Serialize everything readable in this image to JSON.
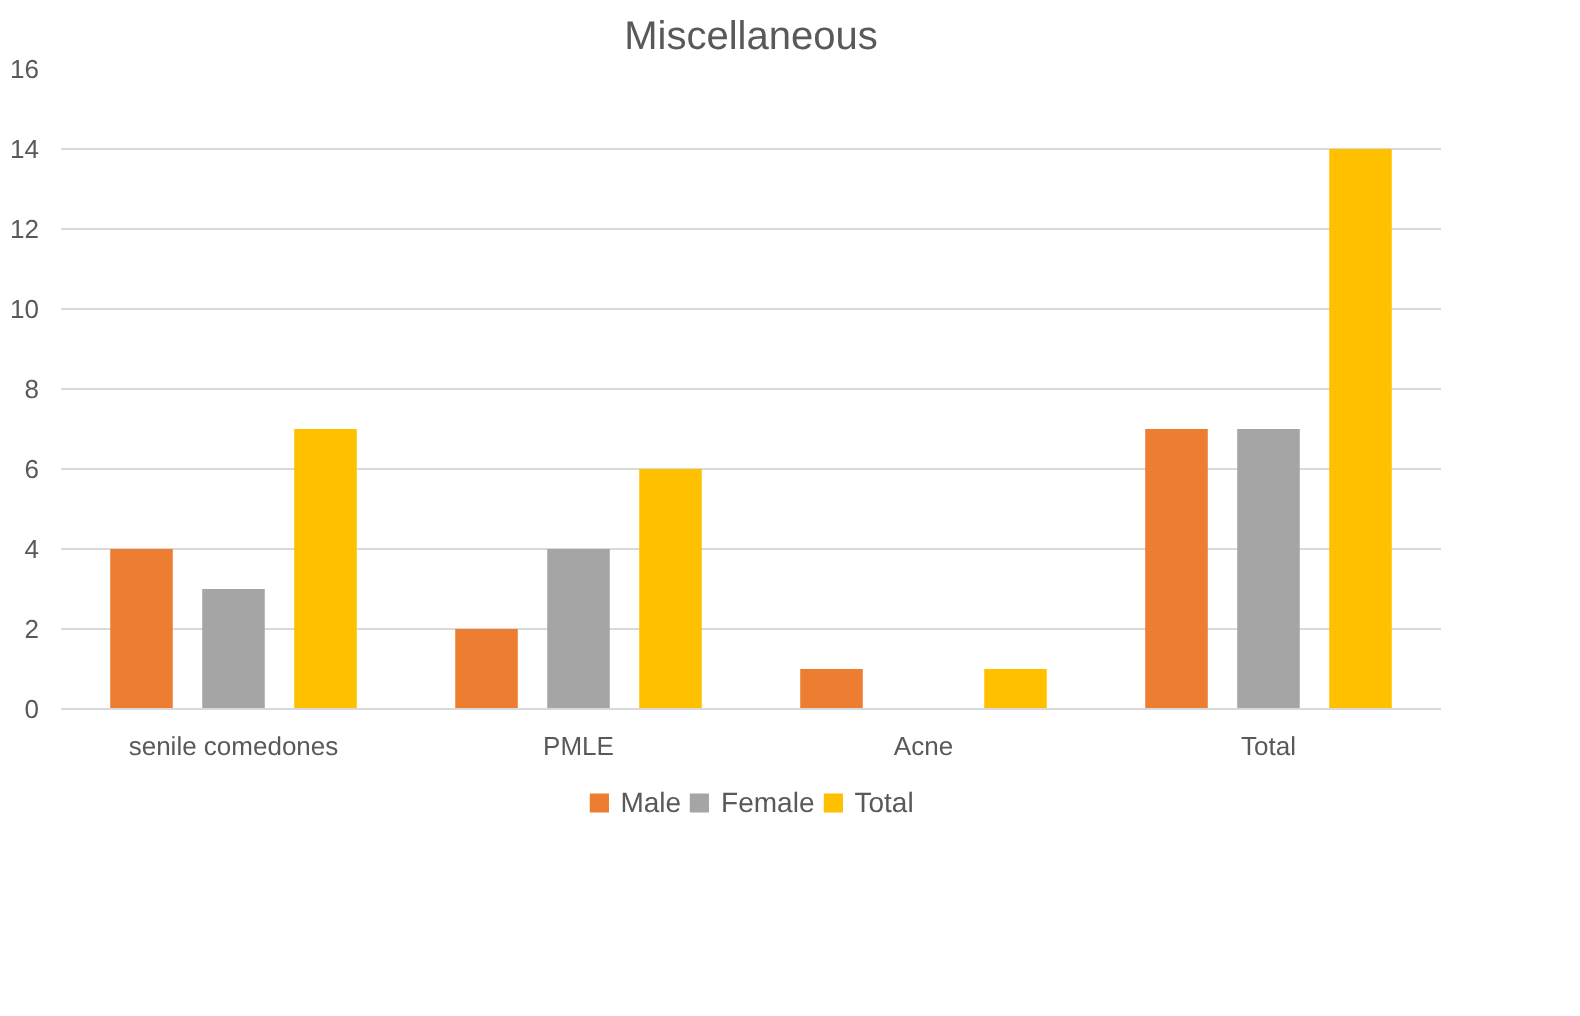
{
  "chart_data": {
    "type": "bar",
    "title": "Miscellaneous",
    "categories": [
      "senile comedones",
      "PMLE",
      "Acne",
      "Total"
    ],
    "series": [
      {
        "name": "Male",
        "color": "#ed7d31",
        "values": [
          4,
          2,
          1,
          7
        ]
      },
      {
        "name": "Female",
        "color": "#a5a5a5",
        "values": [
          3,
          4,
          0,
          7
        ]
      },
      {
        "name": "Total",
        "color": "#ffc000",
        "values": [
          7,
          6,
          1,
          14
        ]
      }
    ],
    "ylim": [
      0,
      16
    ],
    "yticks": [
      0,
      2,
      4,
      6,
      8,
      10,
      12,
      14,
      16
    ],
    "grid": "y",
    "legend": "bottom"
  }
}
